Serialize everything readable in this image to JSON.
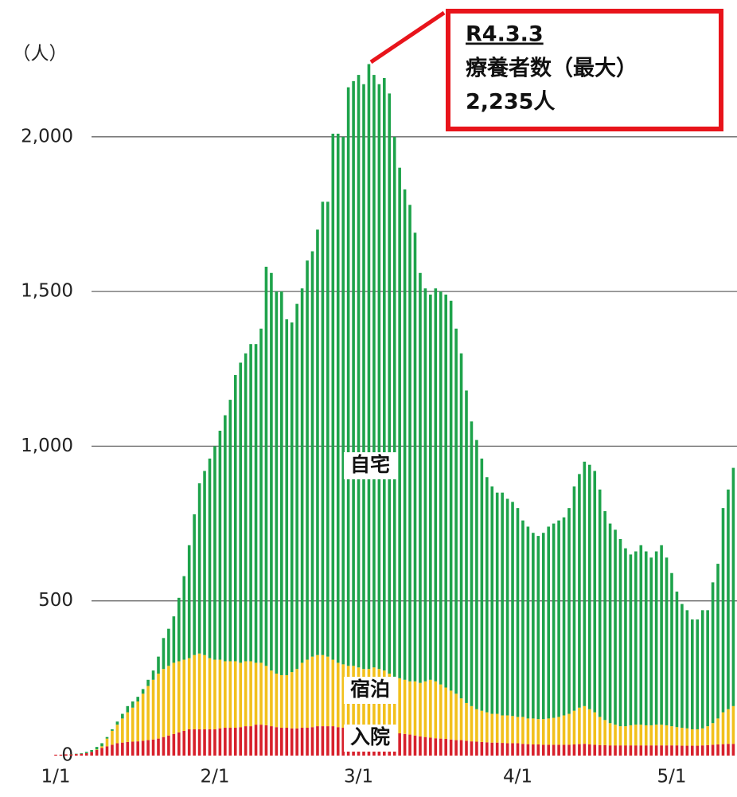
{
  "chart_data": {
    "type": "stacked_bar",
    "y_label": "（人）",
    "annotation": {
      "date": "R4.3.3",
      "label": "療養者数（最大）",
      "value_text": "2,235人"
    },
    "ylim": [
      0,
      2440
    ],
    "yticks": [
      0,
      500,
      {
        "value": 1000,
        "label": "1,000"
      },
      {
        "value": 1500,
        "label": "1,500"
      },
      {
        "value": 2000,
        "label": "2,000"
      }
    ],
    "grid": true,
    "categories": [
      "1/1",
      null,
      null,
      null,
      null,
      null,
      null,
      null,
      null,
      null,
      null,
      null,
      null,
      null,
      null,
      null,
      null,
      null,
      null,
      null,
      null,
      null,
      null,
      null,
      null,
      null,
      null,
      null,
      null,
      null,
      null,
      "2/1",
      null,
      null,
      null,
      null,
      null,
      null,
      null,
      null,
      null,
      null,
      null,
      null,
      null,
      null,
      null,
      null,
      null,
      null,
      null,
      null,
      null,
      null,
      null,
      null,
      null,
      null,
      null,
      "3/1",
      null,
      null,
      null,
      null,
      null,
      null,
      null,
      null,
      null,
      null,
      null,
      null,
      null,
      null,
      null,
      null,
      null,
      null,
      null,
      null,
      null,
      null,
      null,
      null,
      null,
      null,
      null,
      null,
      null,
      null,
      "4/1",
      null,
      null,
      null,
      null,
      null,
      null,
      null,
      null,
      null,
      null,
      null,
      null,
      null,
      null,
      null,
      null,
      null,
      null,
      null,
      null,
      null,
      null,
      null,
      null,
      null,
      null,
      null,
      null,
      null,
      "5/1",
      null,
      null,
      null,
      null,
      null,
      null,
      null,
      null,
      null,
      null,
      null,
      null
    ],
    "series": [
      {
        "name": "入院",
        "color": "#d7202b",
        "values": [
          3,
          3,
          4,
          4,
          5,
          6,
          8,
          12,
          18,
          25,
          30,
          35,
          40,
          42,
          44,
          45,
          46,
          48,
          50,
          52,
          55,
          60,
          65,
          70,
          75,
          80,
          85,
          85,
          85,
          85,
          85,
          85,
          88,
          90,
          90,
          90,
          92,
          95,
          95,
          100,
          100,
          98,
          95,
          92,
          90,
          90,
          88,
          88,
          90,
          90,
          92,
          95,
          95,
          95,
          95,
          92,
          90,
          88,
          88,
          85,
          85,
          85,
          82,
          80,
          80,
          78,
          75,
          72,
          70,
          68,
          65,
          62,
          60,
          58,
          56,
          55,
          54,
          52,
          50,
          50,
          48,
          46,
          45,
          44,
          43,
          42,
          42,
          41,
          40,
          40,
          40,
          38,
          37,
          36,
          36,
          35,
          35,
          35,
          35,
          35,
          35,
          36,
          37,
          38,
          36,
          35,
          34,
          34,
          33,
          33,
          33,
          33,
          33,
          33,
          33,
          33,
          33,
          33,
          33,
          33,
          33,
          33,
          32,
          32,
          32,
          32,
          33,
          34,
          35,
          36,
          37,
          38,
          38
        ]
      },
      {
        "name": "宿泊",
        "color": "#f2c01c",
        "values": [
          0,
          0,
          0,
          0,
          0,
          0,
          0,
          0,
          2,
          5,
          25,
          45,
          60,
          78,
          96,
          110,
          129,
          152,
          175,
          193,
          210,
          220,
          225,
          230,
          230,
          230,
          230,
          240,
          245,
          240,
          230,
          225,
          222,
          215,
          215,
          215,
          208,
          210,
          210,
          200,
          200,
          192,
          180,
          173,
          170,
          170,
          182,
          192,
          210,
          220,
          228,
          230,
          230,
          225,
          215,
          208,
          205,
          202,
          202,
          200,
          195,
          195,
          203,
          200,
          195,
          187,
          180,
          178,
          175,
          172,
          175,
          173,
          180,
          187,
          184,
          175,
          166,
          158,
          150,
          135,
          122,
          114,
          105,
          101,
          97,
          93,
          93,
          89,
          90,
          88,
          85,
          87,
          83,
          84,
          82,
          83,
          85,
          87,
          90,
          95,
          100,
          109,
          118,
          122,
          114,
          105,
          91,
          81,
          72,
          67,
          62,
          62,
          65,
          67,
          67,
          65,
          65,
          67,
          67,
          65,
          62,
          59,
          58,
          56,
          53,
          53,
          55,
          61,
          70,
          84,
          103,
          112,
          122
        ]
      },
      {
        "name": "自宅",
        "color": "#1ea34b",
        "values": [
          0,
          0,
          0,
          1,
          1,
          2,
          4,
          6,
          8,
          10,
          5,
          5,
          10,
          15,
          20,
          20,
          15,
          15,
          20,
          30,
          55,
          100,
          120,
          150,
          205,
          270,
          365,
          455,
          550,
          595,
          645,
          690,
          740,
          795,
          845,
          925,
          970,
          995,
          1025,
          1030,
          1080,
          1290,
          1285,
          1235,
          1240,
          1150,
          1130,
          1180,
          1210,
          1290,
          1310,
          1375,
          1465,
          1470,
          1700,
          1710,
          1705,
          1870,
          1890,
          1915,
          1890,
          1955,
          1915,
          1890,
          1915,
          1875,
          1745,
          1650,
          1585,
          1540,
          1450,
          1325,
          1270,
          1245,
          1270,
          1270,
          1270,
          1260,
          1180,
          1115,
          1010,
          920,
          870,
          815,
          760,
          735,
          715,
          720,
          700,
          692,
          675,
          635,
          620,
          600,
          592,
          602,
          620,
          628,
          635,
          640,
          665,
          725,
          755,
          790,
          790,
          780,
          735,
          675,
          645,
          630,
          605,
          575,
          552,
          560,
          580,
          562,
          542,
          560,
          580,
          542,
          495,
          438,
          400,
          382,
          355,
          355,
          382,
          375,
          455,
          500,
          660,
          710,
          770
        ]
      }
    ]
  }
}
